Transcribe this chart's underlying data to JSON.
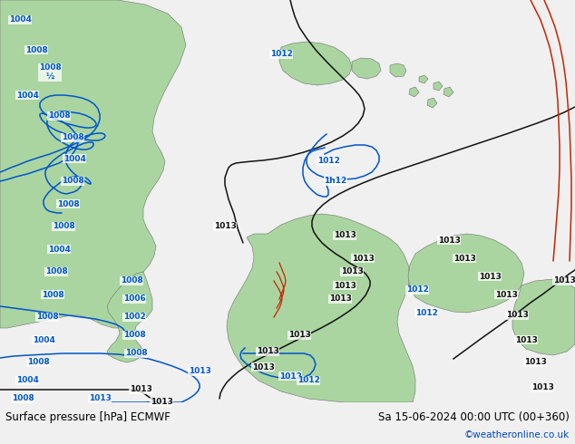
{
  "title_left": "Surface pressure [hPa] ECMWF",
  "title_right": "Sa 15-06-2024 00:00 UTC (00+360)",
  "copyright": "©weatheronline.co.uk",
  "land_color": "#aad5a0",
  "ocean_color": "#d8d8d8",
  "bar_color": "#f0f0f0",
  "blue": "#0055cc",
  "black": "#111111",
  "red": "#cc2200",
  "gray_land": "#b0b0b0",
  "lbl_fs": 6.5,
  "title_fs": 8.5,
  "copy_fs": 7.5,
  "copy_color": "#0044bb",
  "lw": 1.1
}
